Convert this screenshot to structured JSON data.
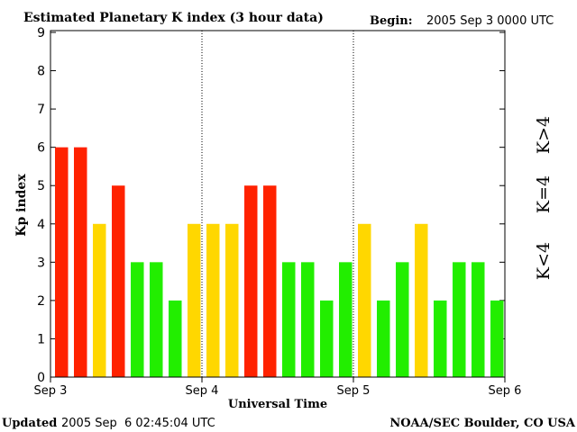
{
  "chart_data": {
    "type": "bar",
    "title": "Estimated Planetary K index (3 hour data)",
    "begin_label": "Begin:",
    "begin_value": "2005 Sep 3 0000 UTC",
    "xlabel": "Universal Time",
    "ylabel": "Kp index",
    "ylim": [
      0,
      9
    ],
    "yticks": [
      "0",
      "1",
      "2",
      "3",
      "4",
      "5",
      "6",
      "7",
      "8",
      "9"
    ],
    "xticks": [
      "Sep 3",
      "Sep 4",
      "Sep 5",
      "Sep 6"
    ],
    "values": [
      6,
      6,
      4,
      5,
      3,
      3,
      2,
      4,
      4,
      4,
      5,
      5,
      3,
      3,
      2,
      3,
      4,
      2,
      3,
      4,
      2,
      3,
      3,
      2
    ],
    "interval_hours": 3,
    "legend": [
      {
        "label": "K>4",
        "color": "#ff2200"
      },
      {
        "label": "K=4",
        "color": "#ffd700"
      },
      {
        "label": "K<4",
        "color": "#22ee00"
      }
    ],
    "colors": {
      "high": "#ff2200",
      "equal": "#ffd700",
      "low": "#22ee00"
    }
  },
  "footer": {
    "updated_label": "Updated",
    "updated_value": "2005 Sep  6 02:45:04 UTC",
    "source": "NOAA/SEC Boulder, CO USA"
  }
}
